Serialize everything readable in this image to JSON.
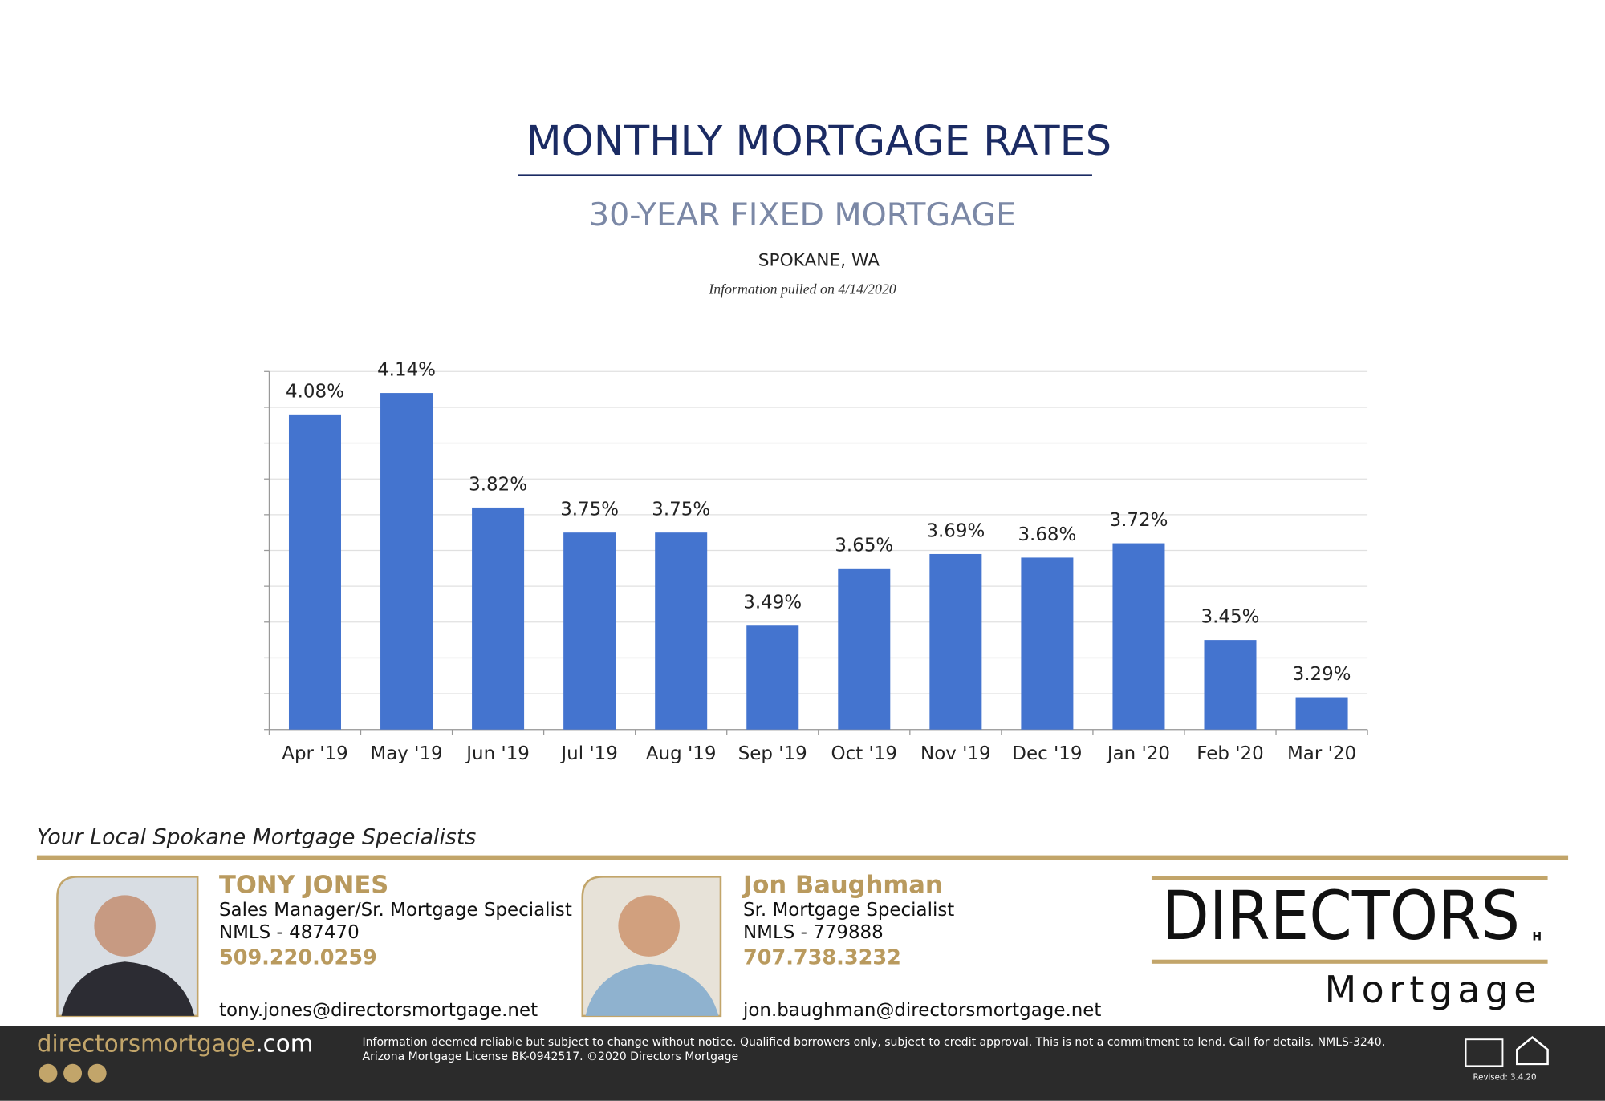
{
  "header": {
    "title": "MONTHLY MORTGAGE RATES",
    "subtitle": "30-YEAR FIXED MORTGAGE",
    "location": "SPOKANE, WA",
    "note": "Information pulled on 4/14/2020"
  },
  "chart_data": {
    "type": "bar",
    "categories": [
      "Apr '19",
      "May '19",
      "Jun '19",
      "Jul '19",
      "Aug '19",
      "Sep '19",
      "Oct '19",
      "Nov '19",
      "Dec '19",
      "Jan '20",
      "Feb '20",
      "Mar '20"
    ],
    "values": [
      4.08,
      4.14,
      3.82,
      3.75,
      3.75,
      3.49,
      3.65,
      3.69,
      3.68,
      3.72,
      3.45,
      3.29
    ],
    "value_labels": [
      "4.08%",
      "4.14%",
      "3.82%",
      "3.75%",
      "3.75%",
      "3.49%",
      "3.65%",
      "3.69%",
      "3.68%",
      "3.72%",
      "3.45%",
      "3.29%"
    ],
    "color": "#4474cf",
    "ylim": [
      3.2,
      4.2
    ],
    "yticks": [
      3.2,
      3.3,
      3.4,
      3.5,
      3.6,
      3.7,
      3.8,
      3.9,
      4.0,
      4.1,
      4.2
    ],
    "grid": true
  },
  "contacts": {
    "heading": "Your Local Spokane Mortgage Specialists",
    "people": [
      {
        "name": "TONY JONES",
        "role": "Sales Manager/Sr. Mortgage Specialist",
        "nmls": "NMLS - 487470",
        "phone": "509.220.0259",
        "email": "tony.jones@directorsmortgage.net"
      },
      {
        "name": "Jon Baughman",
        "role": "Sr. Mortgage Specialist",
        "nmls": "NMLS - 779888",
        "phone": "707.738.3232",
        "email": "jon.baughman@directorsmortgage.net"
      }
    ]
  },
  "logo": {
    "name": "DIRECTORS",
    "mark": "H",
    "sub": "Mortgage"
  },
  "footer": {
    "site": "directorsmortgage",
    "tld": ".com",
    "disclaimer": [
      "Information deemed reliable but subject to change without notice. Qualified borrowers only, subject to credit approval. This is not a commitment to lend. Call for details. NMLS-3240.",
      "Arizona Mortgage License BK-0942517. ©2020 Directors Mortgage"
    ],
    "revised": "Revised: 3.4.20"
  }
}
